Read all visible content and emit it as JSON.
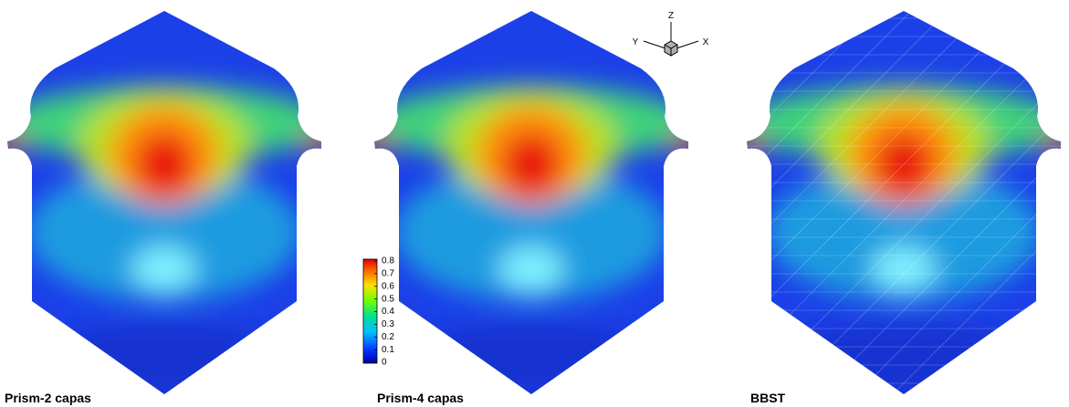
{
  "panels": [
    {
      "label": "Prism-2 capas"
    },
    {
      "label": "Prism-4 capas"
    },
    {
      "label": "BBST"
    }
  ],
  "colorbar": {
    "ticks": [
      0,
      0.1,
      0.2,
      0.3,
      0.4,
      0.5,
      0.6,
      0.7,
      0.8
    ]
  },
  "axes": {
    "x": "X",
    "y": "Y",
    "z": "Z"
  }
}
